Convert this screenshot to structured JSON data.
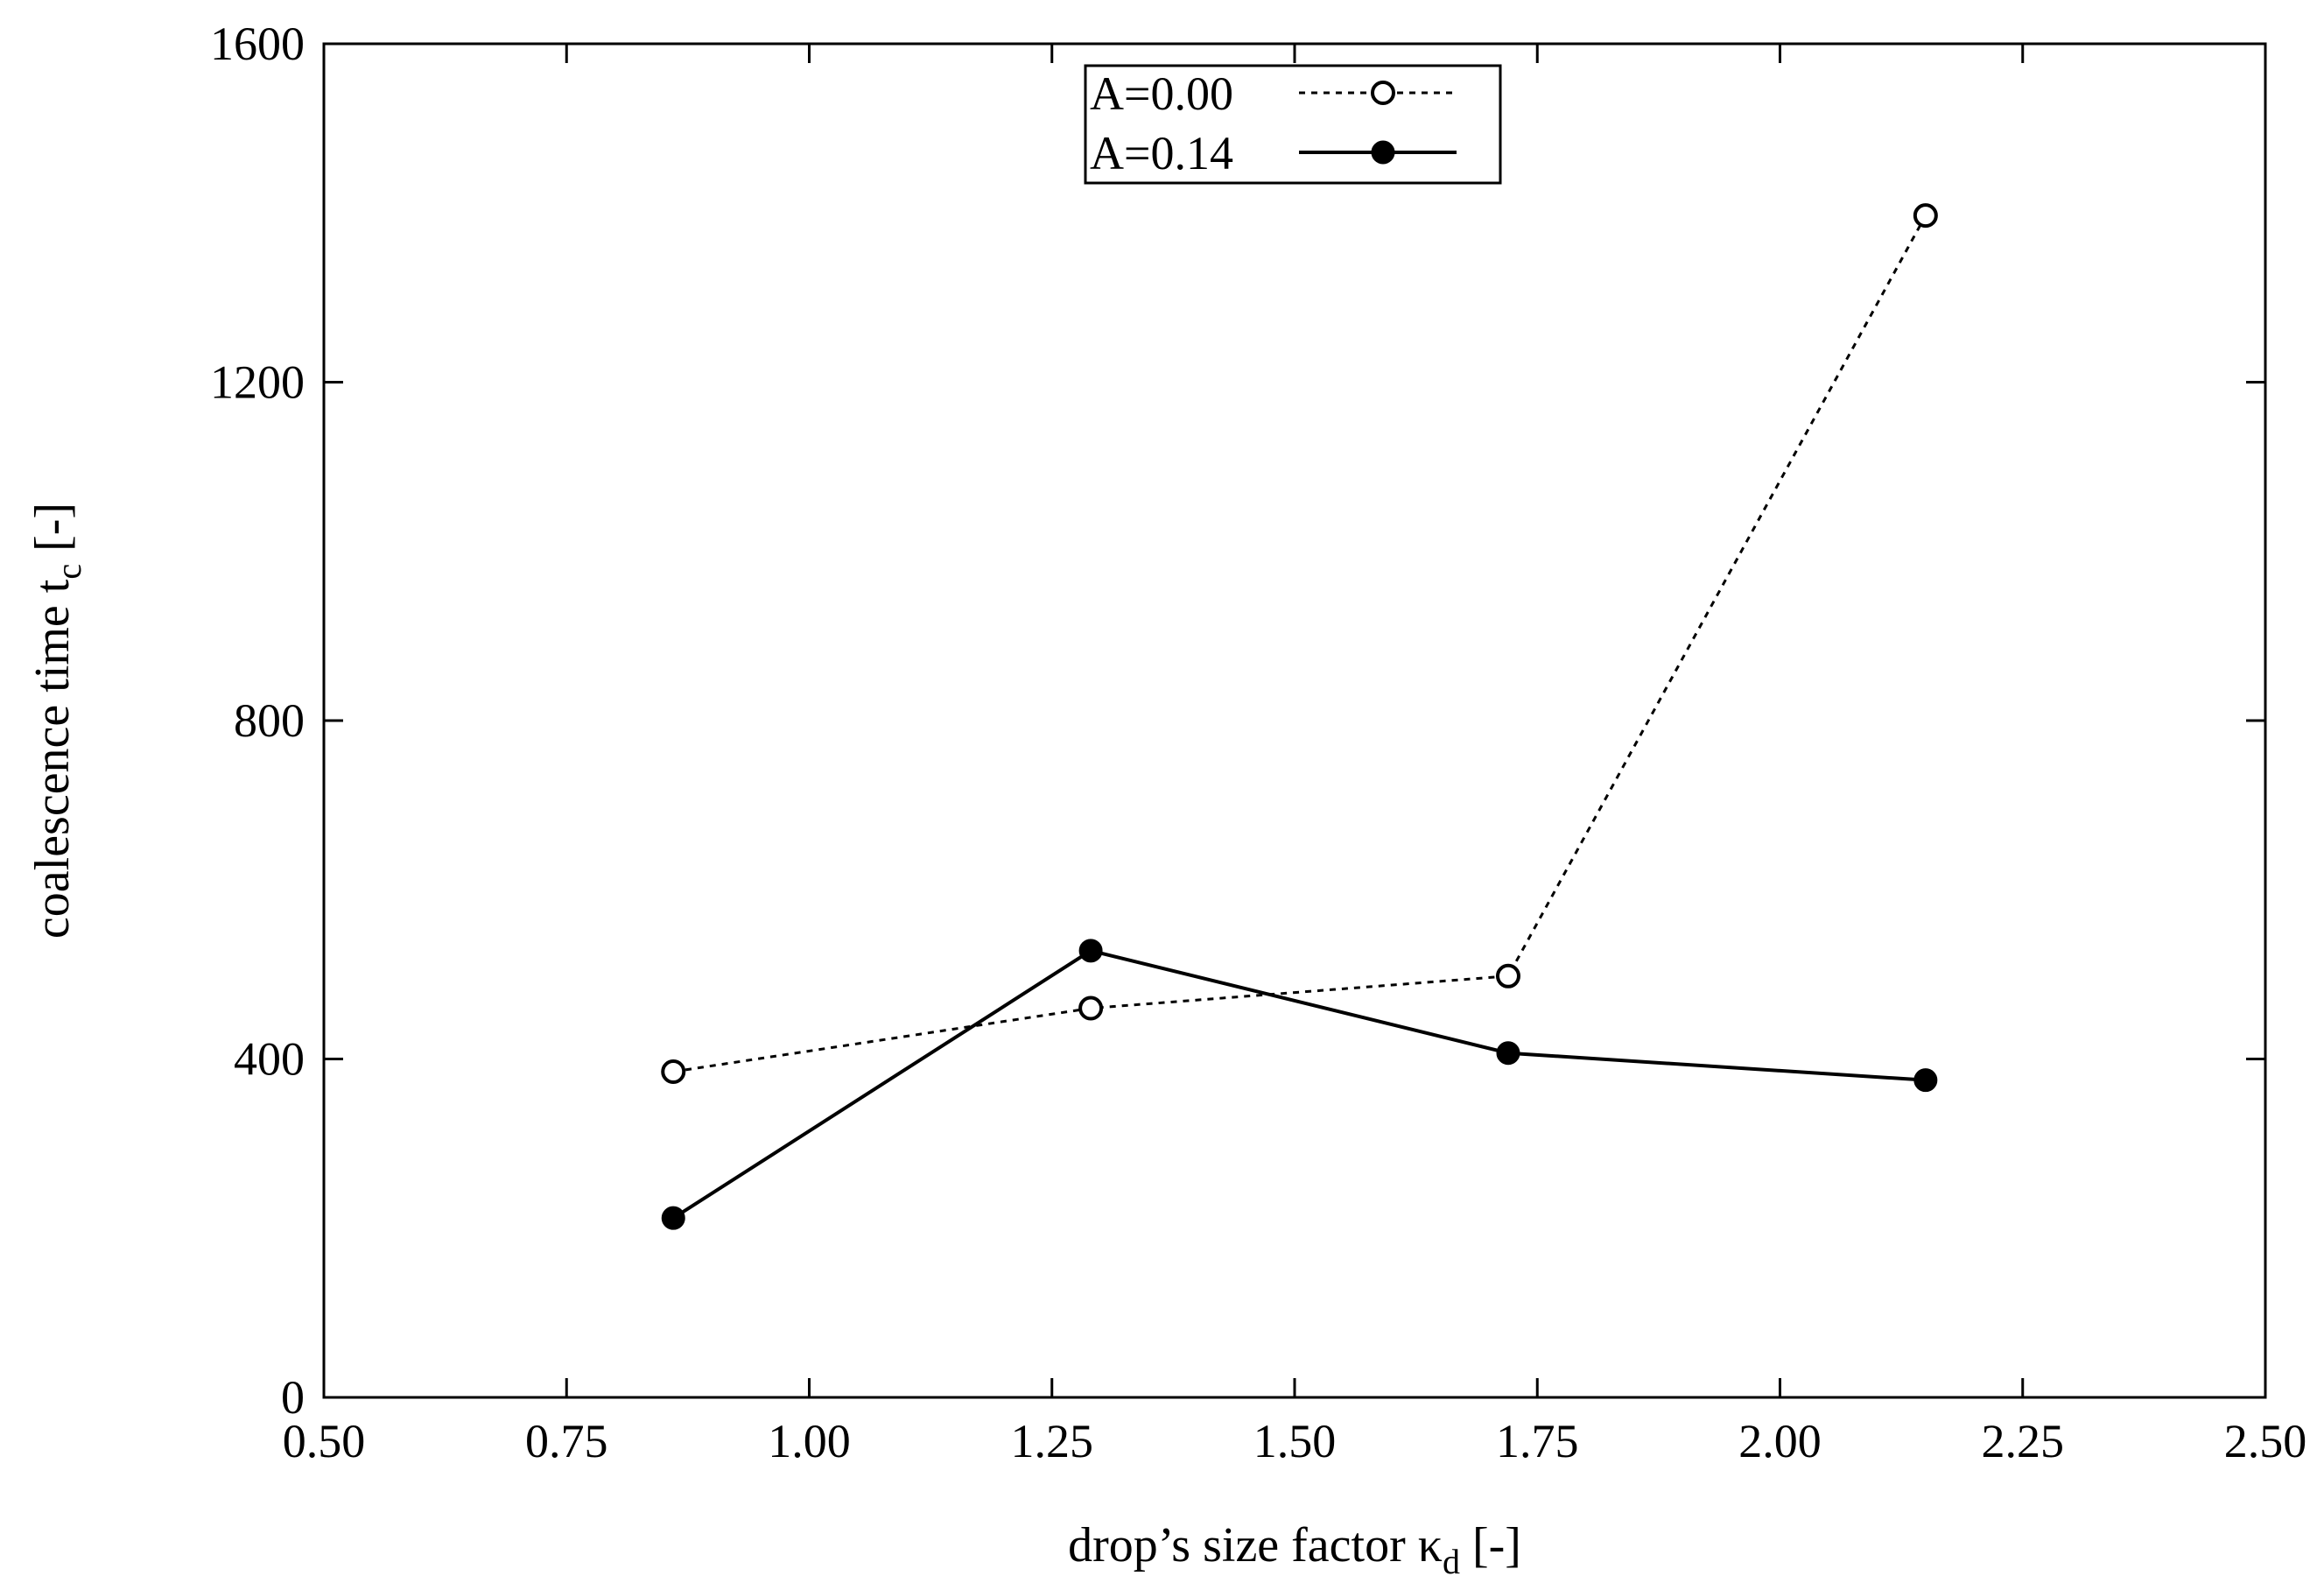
{
  "chart_data": {
    "type": "line",
    "title": "",
    "xlabel": {
      "main": "drop’s size factor κ",
      "sub": "d",
      "unit": " [-]"
    },
    "ylabel": {
      "main": "coalescence time t",
      "sub": "c",
      "unit": " [-]"
    },
    "xlim": [
      0.5,
      2.5
    ],
    "ylim": [
      0,
      1600
    ],
    "xticks": [
      0.5,
      0.75,
      1.0,
      1.25,
      1.5,
      1.75,
      2.0,
      2.25,
      2.5
    ],
    "xtick_labels": [
      "0.50",
      "0.75",
      "1.00",
      "1.25",
      "1.50",
      "1.75",
      "2.00",
      "2.25",
      "2.50"
    ],
    "yticks": [
      0,
      400,
      800,
      1200,
      1600
    ],
    "ytick_labels": [
      "0",
      "400",
      "800",
      "1200",
      "1600"
    ],
    "grid": false,
    "legend_position": "top-center",
    "series": [
      {
        "name": "A=0.00",
        "style": "dotted",
        "marker": "open-circle",
        "x": [
          0.86,
          1.29,
          1.72,
          2.15
        ],
        "y": [
          385,
          460,
          498,
          1397
        ]
      },
      {
        "name": "A=0.14",
        "style": "solid",
        "marker": "filled-circle",
        "x": [
          0.86,
          1.29,
          1.72,
          2.15
        ],
        "y": [
          212,
          528,
          407,
          375
        ]
      }
    ]
  },
  "colors": {
    "line": "#000000",
    "background": "#ffffff"
  }
}
